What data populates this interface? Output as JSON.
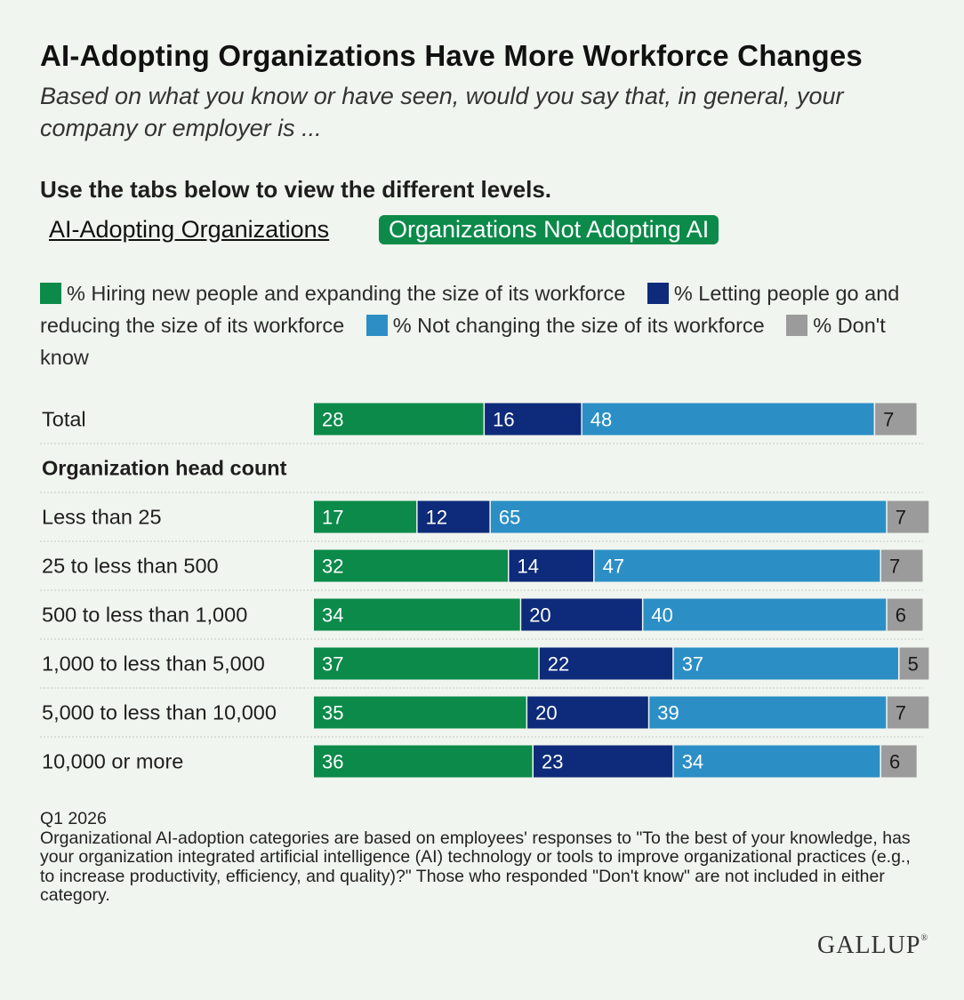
{
  "header": {
    "title": "AI-Adopting Organizations Have More Workforce Changes",
    "subtitle": "Based on what you know or have seen, would you say that, in general, your company or employer is ...",
    "instruction": "Use the tabs below to view the different levels."
  },
  "tabs": [
    {
      "label": "AI-Adopting Organizations",
      "active": false
    },
    {
      "label": "Organizations Not Adopting AI",
      "active": true
    }
  ],
  "colors": {
    "hiring": "#0b8a4a",
    "letting_go": "#0d2b7a",
    "not_changing": "#2b8fc6",
    "dont_know": "#9b9b9b",
    "tab_active": "#0b8a4a"
  },
  "chart_data": {
    "type": "bar",
    "orientation": "horizontal",
    "stacked": true,
    "xlim": [
      0,
      100
    ],
    "series": [
      {
        "name": "% Hiring new people and expanding the size of its workforce",
        "key": "hiring",
        "values": [
          28,
          17,
          32,
          34,
          37,
          35,
          36
        ]
      },
      {
        "name": "% Letting people go and reducing the size of its workforce",
        "key": "letting_go",
        "values": [
          16,
          12,
          14,
          20,
          22,
          20,
          23
        ]
      },
      {
        "name": "% Not changing the size of its workforce",
        "key": "not_changing",
        "values": [
          48,
          65,
          47,
          40,
          37,
          39,
          34
        ]
      },
      {
        "name": "% Don't know",
        "key": "dont_know",
        "values": [
          7,
          7,
          7,
          6,
          5,
          7,
          6
        ]
      }
    ],
    "rows": [
      {
        "label": "Total",
        "kind": "bar"
      },
      {
        "label": "Organization head count",
        "kind": "group"
      },
      {
        "label": "Less than 25",
        "kind": "bar"
      },
      {
        "label": "25 to less than 500",
        "kind": "bar"
      },
      {
        "label": "500 to less than 1,000",
        "kind": "bar"
      },
      {
        "label": "1,000 to less than 5,000",
        "kind": "bar"
      },
      {
        "label": "5,000 to less than 10,000",
        "kind": "bar"
      },
      {
        "label": "10,000 or more",
        "kind": "bar"
      }
    ]
  },
  "notes": {
    "period": "Q1 2026",
    "text": "Organizational AI-adoption categories are based on employees' responses to \"To the best of your knowledge, has your organization integrated artificial intelligence (AI) technology or tools to improve organizational practices (e.g., to increase productivity, efficiency, and quality)?\" Those who responded \"Don't know\" are not included in either category."
  },
  "logo": "GALLUP",
  "logo_mark": "®"
}
